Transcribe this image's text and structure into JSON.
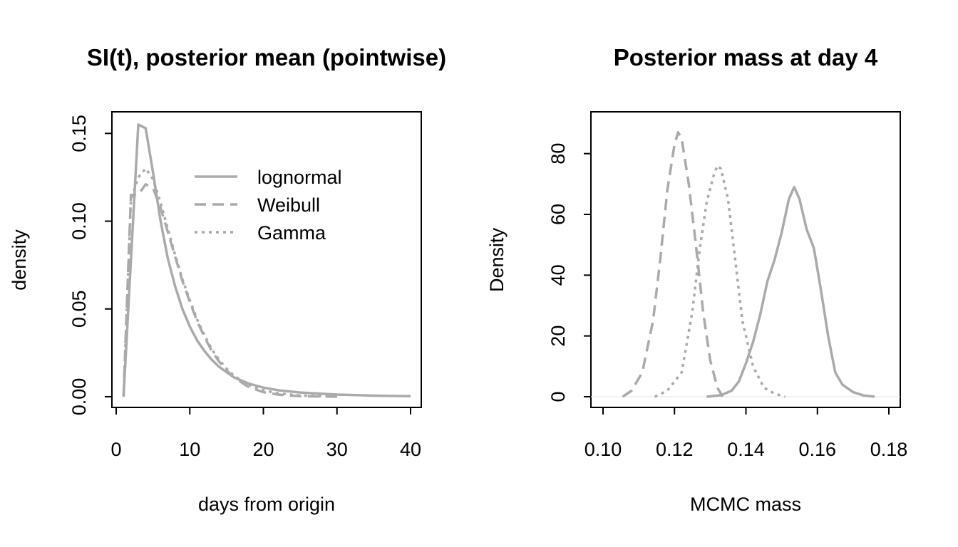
{
  "chart_data": [
    {
      "type": "line",
      "title": "SI(t), posterior mean (pointwise)",
      "xlabel": "days from origin",
      "ylabel": "density",
      "xlim": [
        0,
        40
      ],
      "ylim": [
        0,
        0.155
      ],
      "xticks": [
        "0",
        "10",
        "20",
        "30",
        "40"
      ],
      "yticks": [
        "0.00",
        "0.05",
        "0.10",
        "0.15"
      ],
      "legend_position": "top-right",
      "grid": false,
      "series": [
        {
          "name": "lognormal",
          "dash": "solid",
          "color": "#aaaaaa",
          "x": [
            1,
            3,
            4,
            5,
            6,
            7,
            8,
            9,
            10,
            11,
            12,
            13,
            14,
            15,
            16,
            18,
            20,
            22,
            25,
            30,
            35,
            40
          ],
          "y": [
            0.0,
            0.155,
            0.153,
            0.128,
            0.101,
            0.079,
            0.063,
            0.05,
            0.04,
            0.032,
            0.026,
            0.021,
            0.017,
            0.014,
            0.011,
            0.0075,
            0.0052,
            0.0037,
            0.0024,
            0.0012,
            0.0006,
            0.0003
          ]
        },
        {
          "name": "Weibull",
          "dash": "dashed",
          "color": "#aaaaaa",
          "x": [
            1,
            2,
            3,
            4,
            5,
            6,
            7,
            8,
            9,
            10,
            11,
            12,
            13,
            14,
            15,
            16,
            18,
            20,
            22,
            25,
            30
          ],
          "y": [
            0.0,
            0.115,
            0.115,
            0.121,
            0.119,
            0.108,
            0.094,
            0.08,
            0.066,
            0.054,
            0.043,
            0.034,
            0.026,
            0.02,
            0.015,
            0.011,
            0.0055,
            0.0026,
            0.0012,
            0.0003,
            0.0
          ]
        },
        {
          "name": "Gamma",
          "dash": "dotted",
          "color": "#aaaaaa",
          "x": [
            1,
            2,
            3,
            4,
            5,
            6,
            7,
            8,
            9,
            10,
            11,
            12,
            13,
            14,
            15,
            16,
            18,
            20,
            22,
            25,
            30
          ],
          "y": [
            0.0,
            0.112,
            0.125,
            0.13,
            0.124,
            0.111,
            0.096,
            0.081,
            0.067,
            0.055,
            0.044,
            0.035,
            0.027,
            0.021,
            0.016,
            0.012,
            0.0068,
            0.0036,
            0.0019,
            0.0007,
            0.0001
          ]
        }
      ]
    },
    {
      "type": "line",
      "title": "Posterior mass at day 4",
      "xlabel": "MCMC mass",
      "ylabel": "Density",
      "xlim": [
        0.1,
        0.18
      ],
      "ylim": [
        0,
        90
      ],
      "xticks": [
        "0.10",
        "0.12",
        "0.14",
        "0.16",
        "0.18"
      ],
      "yticks": [
        "0",
        "20",
        "40",
        "60",
        "80"
      ],
      "grid": false,
      "series": [
        {
          "dash": "dashed",
          "color": "#aaaaaa",
          "x": [
            0.1055,
            0.108,
            0.111,
            0.114,
            0.116,
            0.118,
            0.12,
            0.121,
            0.122,
            0.124,
            0.126,
            0.128,
            0.13,
            0.132,
            0.1335
          ],
          "y": [
            0,
            2,
            8,
            25,
            45,
            68,
            83,
            87,
            85,
            70,
            50,
            28,
            12,
            3,
            0
          ]
        },
        {
          "dash": "dotted",
          "color": "#aaaaaa",
          "x": [
            0.1145,
            0.118,
            0.122,
            0.125,
            0.127,
            0.129,
            0.131,
            0.132,
            0.133,
            0.135,
            0.137,
            0.139,
            0.142,
            0.145,
            0.148,
            0.151
          ],
          "y": [
            0,
            2,
            8,
            28,
            48,
            64,
            73,
            76,
            75,
            65,
            45,
            25,
            10,
            3,
            1,
            0
          ]
        },
        {
          "dash": "solid",
          "color": "#aaaaaa",
          "x": [
            0.129,
            0.133,
            0.136,
            0.138,
            0.14,
            0.142,
            0.144,
            0.146,
            0.148,
            0.15,
            0.152,
            0.1535,
            0.155,
            0.157,
            0.159,
            0.161,
            0.163,
            0.165,
            0.167,
            0.17,
            0.173,
            0.176
          ],
          "y": [
            0,
            0.5,
            2,
            5,
            11,
            18,
            27,
            38,
            45,
            54,
            65,
            69,
            65,
            55,
            49,
            35,
            20,
            8,
            4,
            1.5,
            0.4,
            0
          ]
        }
      ]
    }
  ]
}
